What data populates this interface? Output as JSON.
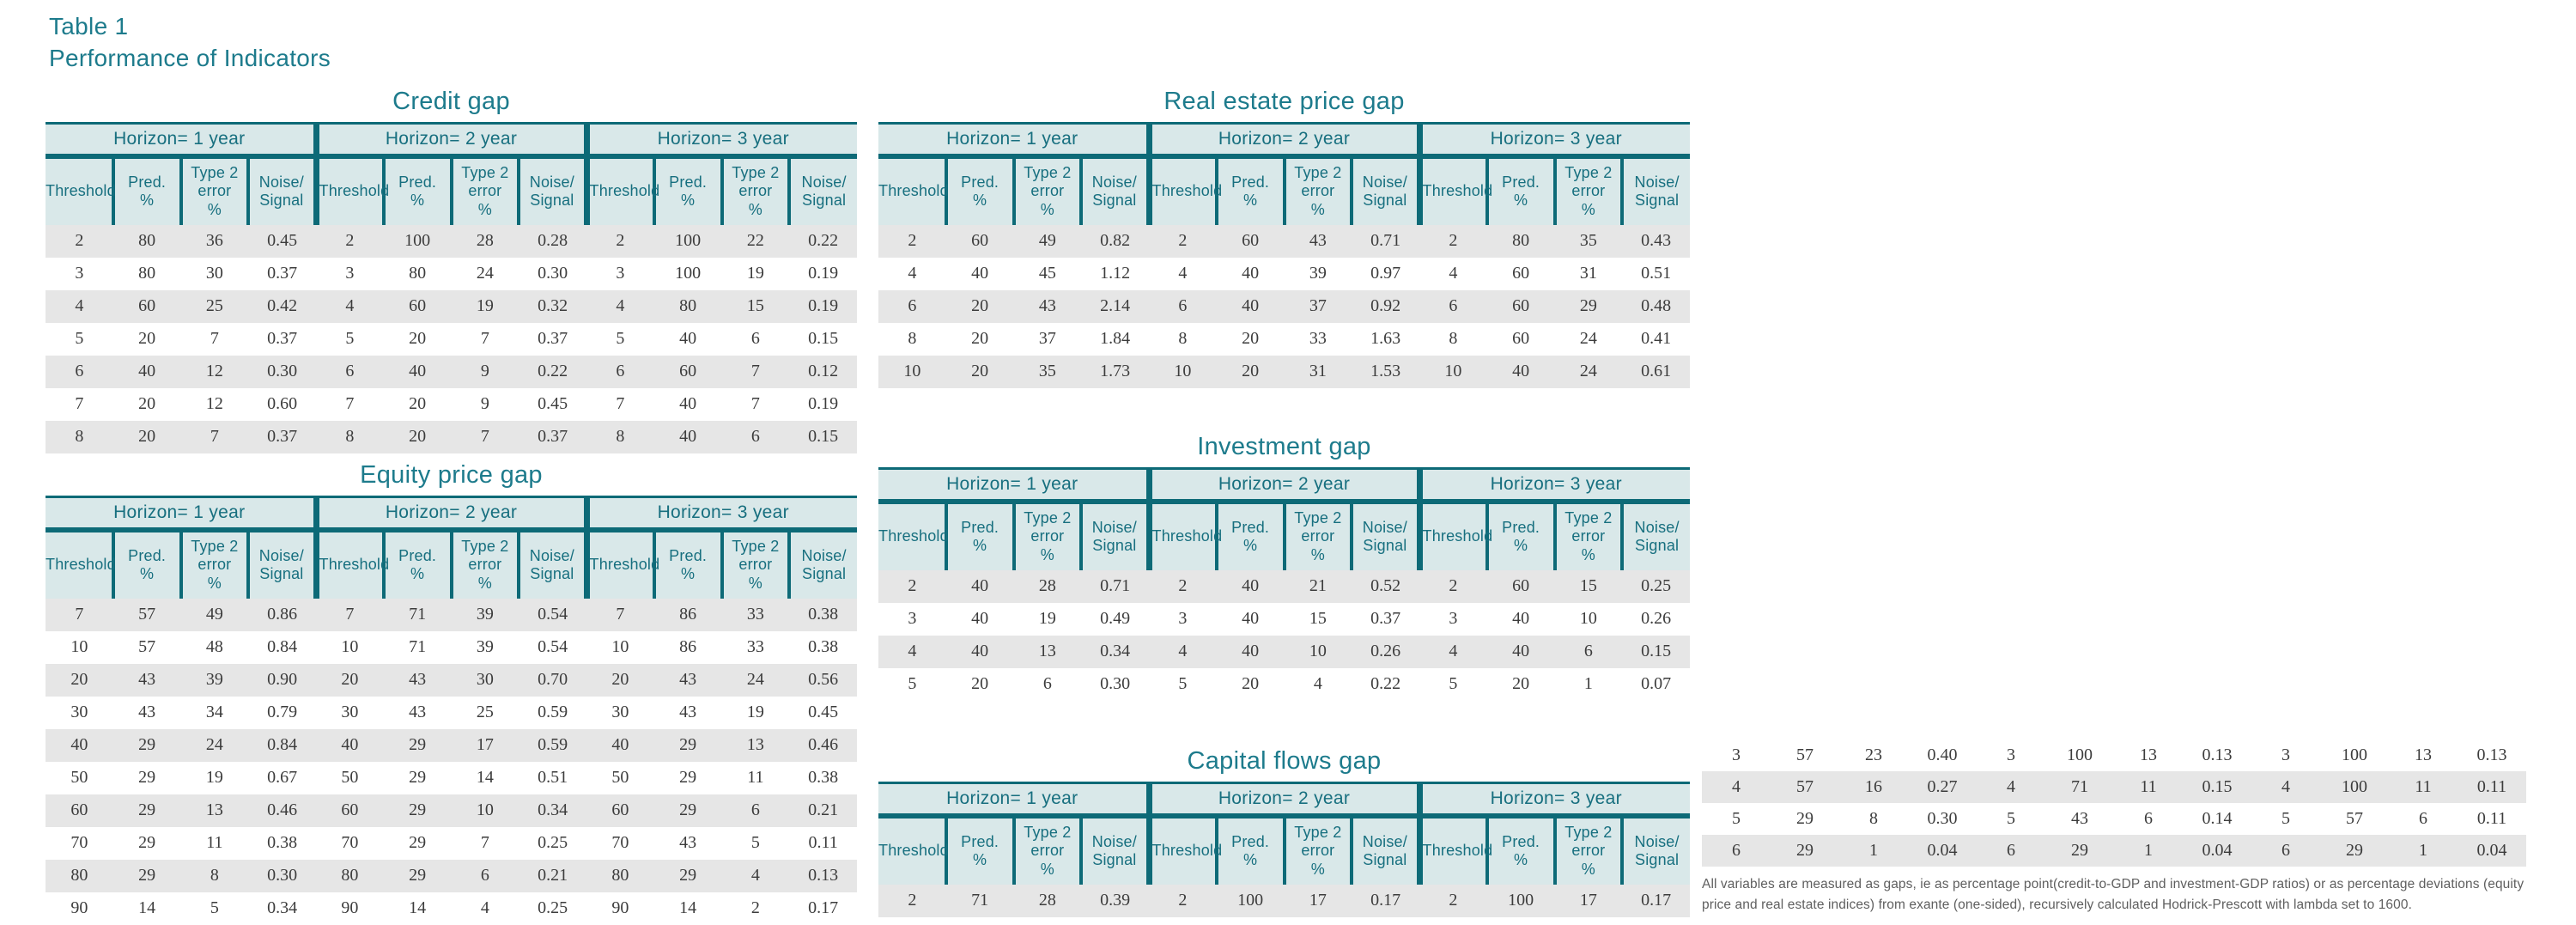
{
  "header": {
    "table_number": "Table 1",
    "title": "Performance of Indicators"
  },
  "column_headers": {
    "horizons": [
      "Horizon= 1 year",
      "Horizon= 2 year",
      "Horizon= 3 year"
    ],
    "columns": [
      "Threshold",
      "Pred.\n%",
      "Type 2\nerror\n%",
      "Noise/\nSignal"
    ]
  },
  "tables": [
    {
      "id": "credit-gap",
      "title": "Credit gap",
      "rows": [
        [
          "2",
          "80",
          "36",
          "0.45",
          "2",
          "100",
          "28",
          "0.28",
          "2",
          "100",
          "22",
          "0.22"
        ],
        [
          "3",
          "80",
          "30",
          "0.37",
          "3",
          "80",
          "24",
          "0.30",
          "3",
          "100",
          "19",
          "0.19"
        ],
        [
          "4",
          "60",
          "25",
          "0.42",
          "4",
          "60",
          "19",
          "0.32",
          "4",
          "80",
          "15",
          "0.19"
        ],
        [
          "5",
          "20",
          "7",
          "0.37",
          "5",
          "20",
          "7",
          "0.37",
          "5",
          "40",
          "6",
          "0.15"
        ],
        [
          "6",
          "40",
          "12",
          "0.30",
          "6",
          "40",
          "9",
          "0.22",
          "6",
          "60",
          "7",
          "0.12"
        ],
        [
          "7",
          "20",
          "12",
          "0.60",
          "7",
          "20",
          "9",
          "0.45",
          "7",
          "40",
          "7",
          "0.19"
        ],
        [
          "8",
          "20",
          "7",
          "0.37",
          "8",
          "20",
          "7",
          "0.37",
          "8",
          "40",
          "6",
          "0.15"
        ]
      ]
    },
    {
      "id": "real-estate-price-gap",
      "title": "Real estate price gap",
      "rows": [
        [
          "2",
          "60",
          "49",
          "0.82",
          "2",
          "60",
          "43",
          "0.71",
          "2",
          "80",
          "35",
          "0.43"
        ],
        [
          "4",
          "40",
          "45",
          "1.12",
          "4",
          "40",
          "39",
          "0.97",
          "4",
          "60",
          "31",
          "0.51"
        ],
        [
          "6",
          "20",
          "43",
          "2.14",
          "6",
          "40",
          "37",
          "0.92",
          "6",
          "60",
          "29",
          "0.48"
        ],
        [
          "8",
          "20",
          "37",
          "1.84",
          "8",
          "20",
          "33",
          "1.63",
          "8",
          "60",
          "24",
          "0.41"
        ],
        [
          "10",
          "20",
          "35",
          "1.73",
          "10",
          "20",
          "31",
          "1.53",
          "10",
          "40",
          "24",
          "0.61"
        ]
      ]
    },
    {
      "id": "equity-price-gap",
      "title": "Equity price gap",
      "rows": [
        [
          "7",
          "57",
          "49",
          "0.86",
          "7",
          "71",
          "39",
          "0.54",
          "7",
          "86",
          "33",
          "0.38"
        ],
        [
          "10",
          "57",
          "48",
          "0.84",
          "10",
          "71",
          "39",
          "0.54",
          "10",
          "86",
          "33",
          "0.38"
        ],
        [
          "20",
          "43",
          "39",
          "0.90",
          "20",
          "43",
          "30",
          "0.70",
          "20",
          "43",
          "24",
          "0.56"
        ],
        [
          "30",
          "43",
          "34",
          "0.79",
          "30",
          "43",
          "25",
          "0.59",
          "30",
          "43",
          "19",
          "0.45"
        ],
        [
          "40",
          "29",
          "24",
          "0.84",
          "40",
          "29",
          "17",
          "0.59",
          "40",
          "29",
          "13",
          "0.46"
        ],
        [
          "50",
          "29",
          "19",
          "0.67",
          "50",
          "29",
          "14",
          "0.51",
          "50",
          "29",
          "11",
          "0.38"
        ],
        [
          "60",
          "29",
          "13",
          "0.46",
          "60",
          "29",
          "10",
          "0.34",
          "60",
          "29",
          "6",
          "0.21"
        ],
        [
          "70",
          "29",
          "11",
          "0.38",
          "70",
          "29",
          "7",
          "0.25",
          "70",
          "43",
          "5",
          "0.11"
        ],
        [
          "80",
          "29",
          "8",
          "0.30",
          "80",
          "29",
          "6",
          "0.21",
          "80",
          "29",
          "4",
          "0.13"
        ],
        [
          "90",
          "14",
          "5",
          "0.34",
          "90",
          "14",
          "4",
          "0.25",
          "90",
          "14",
          "2",
          "0.17"
        ]
      ]
    },
    {
      "id": "investment-gap",
      "title": "Investment gap",
      "rows": [
        [
          "2",
          "40",
          "28",
          "0.71",
          "2",
          "40",
          "21",
          "0.52",
          "2",
          "60",
          "15",
          "0.25"
        ],
        [
          "3",
          "40",
          "19",
          "0.49",
          "3",
          "40",
          "15",
          "0.37",
          "3",
          "40",
          "10",
          "0.26"
        ],
        [
          "4",
          "40",
          "13",
          "0.34",
          "4",
          "40",
          "10",
          "0.26",
          "4",
          "40",
          "6",
          "0.15"
        ],
        [
          "5",
          "20",
          "6",
          "0.30",
          "5",
          "20",
          "4",
          "0.22",
          "5",
          "20",
          "1",
          "0.07"
        ]
      ]
    },
    {
      "id": "capital-flows-gap",
      "title": "Capital flows gap",
      "rows": [
        [
          "2",
          "71",
          "28",
          "0.39",
          "2",
          "100",
          "17",
          "0.17",
          "2",
          "100",
          "17",
          "0.17"
        ]
      ]
    },
    {
      "id": "capital-flows-gap-continued",
      "title": "",
      "rows": [
        [
          "3",
          "57",
          "23",
          "0.40",
          "3",
          "100",
          "13",
          "0.13",
          "3",
          "100",
          "13",
          "0.13"
        ],
        [
          "4",
          "57",
          "16",
          "0.27",
          "4",
          "71",
          "11",
          "0.15",
          "4",
          "100",
          "11",
          "0.11"
        ],
        [
          "5",
          "29",
          "8",
          "0.30",
          "5",
          "43",
          "6",
          "0.14",
          "5",
          "57",
          "6",
          "0.11"
        ],
        [
          "6",
          "29",
          "1",
          "0.04",
          "6",
          "29",
          "1",
          "0.04",
          "6",
          "29",
          "1",
          "0.04"
        ]
      ]
    }
  ],
  "footnote": "All variables are measured as gaps, ie as percentage point(credit-to-GDP and investment-GDP ratios) or as percentage deviations (equity price and real estate indices) from exante (one-sided), recursively calculated Hodrick-Prescott with lambda set to 1600.",
  "colors": {
    "teal_border": "#0d6a77",
    "teal_text": "#176f7f",
    "title_teal": "#1d7b8c",
    "band_bg": "#d9e8e9",
    "alt_row": "#e6e6e6",
    "data_text": "#3c3c3c",
    "footnote_text": "#5f5f5f"
  }
}
